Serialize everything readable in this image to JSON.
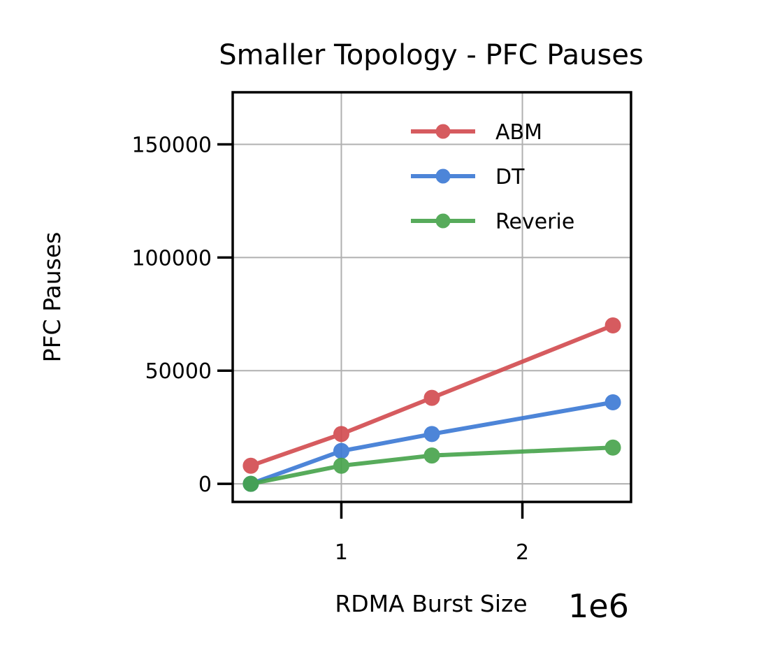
{
  "chart_data": {
    "type": "line",
    "title": "Smaller Topology - PFC Pauses",
    "xlabel": "RDMA Burst Size",
    "ylabel": "PFC Pauses",
    "x_offset_label": "1e6",
    "x_multiplier": 1000000,
    "xlim": [
      0.4,
      2.6
    ],
    "ylim": [
      -8000,
      173000
    ],
    "x_ticks": [
      1,
      2
    ],
    "x_tick_labels": [
      "1",
      "2"
    ],
    "y_ticks": [
      0,
      50000,
      100000,
      150000
    ],
    "y_tick_labels": [
      "0",
      "50000",
      "100000",
      "150000"
    ],
    "x": [
      0.5,
      1.0,
      1.5,
      2.5
    ],
    "grid": true,
    "legend_position": "top-right",
    "series": [
      {
        "name": "ABM",
        "color": "#d24a4e",
        "values": [
          8000,
          22000,
          38000,
          70000
        ]
      },
      {
        "name": "DT",
        "color": "#3a78d4",
        "values": [
          0,
          14500,
          22000,
          36000
        ]
      },
      {
        "name": "Reverie",
        "color": "#45a34a",
        "values": [
          0,
          8000,
          12500,
          16000
        ]
      }
    ]
  }
}
